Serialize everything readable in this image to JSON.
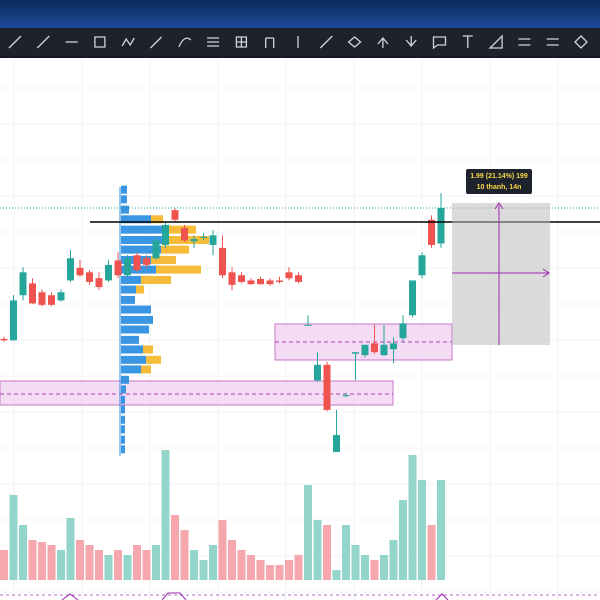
{
  "measure_label": {
    "line1": "1.99 (21.14%) 199",
    "line2": "10 thanh, 14n"
  },
  "chart_data": {
    "type": "candlestick",
    "ylim": [
      6,
      13.3
    ],
    "up_color": "#26a69a",
    "down_color": "#ef5350",
    "volume_up_color": "#93d5ca",
    "volume_down_color": "#f6a7ad",
    "open": [
      9.53,
      9.51,
      10.12,
      10.28,
      10.16,
      10.12,
      10.05,
      10.32,
      10.49,
      10.43,
      10.35,
      10.32,
      10.59,
      10.39,
      10.66,
      10.62,
      10.62,
      10.8,
      11.27,
      11.03,
      10.85,
      10.9,
      10.8,
      10.76,
      10.43,
      10.39,
      10.32,
      10.34,
      10.32,
      10.32,
      10.43,
      10.39,
      9.72,
      8.97,
      9.18,
      8.0,
      8.77,
      9.33,
      9.31,
      9.47,
      9.31,
      9.39,
      9.54,
      9.85,
      10.39,
      11.14,
      10.82
    ],
    "high": [
      9.56,
      10.12,
      10.5,
      10.35,
      10.2,
      10.16,
      10.2,
      10.73,
      10.6,
      10.46,
      10.43,
      10.6,
      10.7,
      10.66,
      10.7,
      10.66,
      10.9,
      11.1,
      11.3,
      11.07,
      10.93,
      10.96,
      11.0,
      10.93,
      10.5,
      10.43,
      10.35,
      10.37,
      10.35,
      10.37,
      10.5,
      10.43,
      9.85,
      9.35,
      9.22,
      8.57,
      8.8,
      9.35,
      9.45,
      9.72,
      9.72,
      9.55,
      9.85,
      10.32,
      10.7,
      11.2,
      11.5
    ],
    "low": [
      9.49,
      9.51,
      10.05,
      10.0,
      9.97,
      9.97,
      10.03,
      10.3,
      10.37,
      10.26,
      10.19,
      10.3,
      10.35,
      10.37,
      10.43,
      10.49,
      10.6,
      10.76,
      11.12,
      10.84,
      10.76,
      10.86,
      10.66,
      10.35,
      10.19,
      10.28,
      10.26,
      10.26,
      10.25,
      10.28,
      10.32,
      10.28,
      9.72,
      8.95,
      8.55,
      8.0,
      8.74,
      8.97,
      9.28,
      9.33,
      9.3,
      9.2,
      9.5,
      9.82,
      10.35,
      10.76,
      10.76
    ],
    "close": [
      9.51,
      10.05,
      10.43,
      10.01,
      9.99,
      9.99,
      10.16,
      10.62,
      10.39,
      10.3,
      10.23,
      10.53,
      10.39,
      10.62,
      10.46,
      10.53,
      10.86,
      11.07,
      11.14,
      10.86,
      10.88,
      10.91,
      10.93,
      10.39,
      10.26,
      10.3,
      10.27,
      10.27,
      10.27,
      10.3,
      10.35,
      10.3,
      9.72,
      9.18,
      8.57,
      8.23,
      8.77,
      9.35,
      9.45,
      9.35,
      9.45,
      9.47,
      9.74,
      10.32,
      10.66,
      10.8,
      11.3
    ],
    "volume": [
      30,
      85,
      55,
      40,
      38,
      35,
      30,
      62,
      40,
      35,
      30,
      25,
      30,
      25,
      35,
      30,
      35,
      130,
      65,
      50,
      30,
      20,
      35,
      60,
      40,
      30,
      25,
      20,
      15,
      15,
      20,
      25,
      95,
      60,
      55,
      10,
      55,
      35,
      25,
      20,
      25,
      40,
      80,
      125,
      100,
      55,
      100
    ],
    "vlim": [
      0,
      140
    ],
    "volume_profile": {
      "blue_color": "#2f8fe0",
      "yellow_color": "#f5b82e",
      "levels": [
        11.54,
        11.41,
        11.27,
        11.14,
        11.0,
        10.86,
        10.73,
        10.59,
        10.46,
        10.32,
        10.19,
        10.05,
        9.92,
        9.78,
        9.65,
        9.51,
        9.38,
        9.24,
        9.11,
        8.97,
        8.84,
        8.7,
        8.57,
        8.43,
        8.3,
        8.16,
        8.03
      ],
      "blue": [
        6,
        6,
        8,
        30,
        45,
        48,
        40,
        30,
        35,
        20,
        15,
        14,
        30,
        32,
        28,
        18,
        22,
        25,
        20,
        8,
        5,
        4,
        4,
        4,
        4,
        4,
        4
      ],
      "yellow": [
        0,
        0,
        0,
        12,
        30,
        40,
        28,
        25,
        45,
        30,
        8,
        0,
        0,
        0,
        0,
        0,
        10,
        15,
        10,
        0,
        0,
        0,
        0,
        0,
        0,
        0,
        0
      ]
    }
  }
}
